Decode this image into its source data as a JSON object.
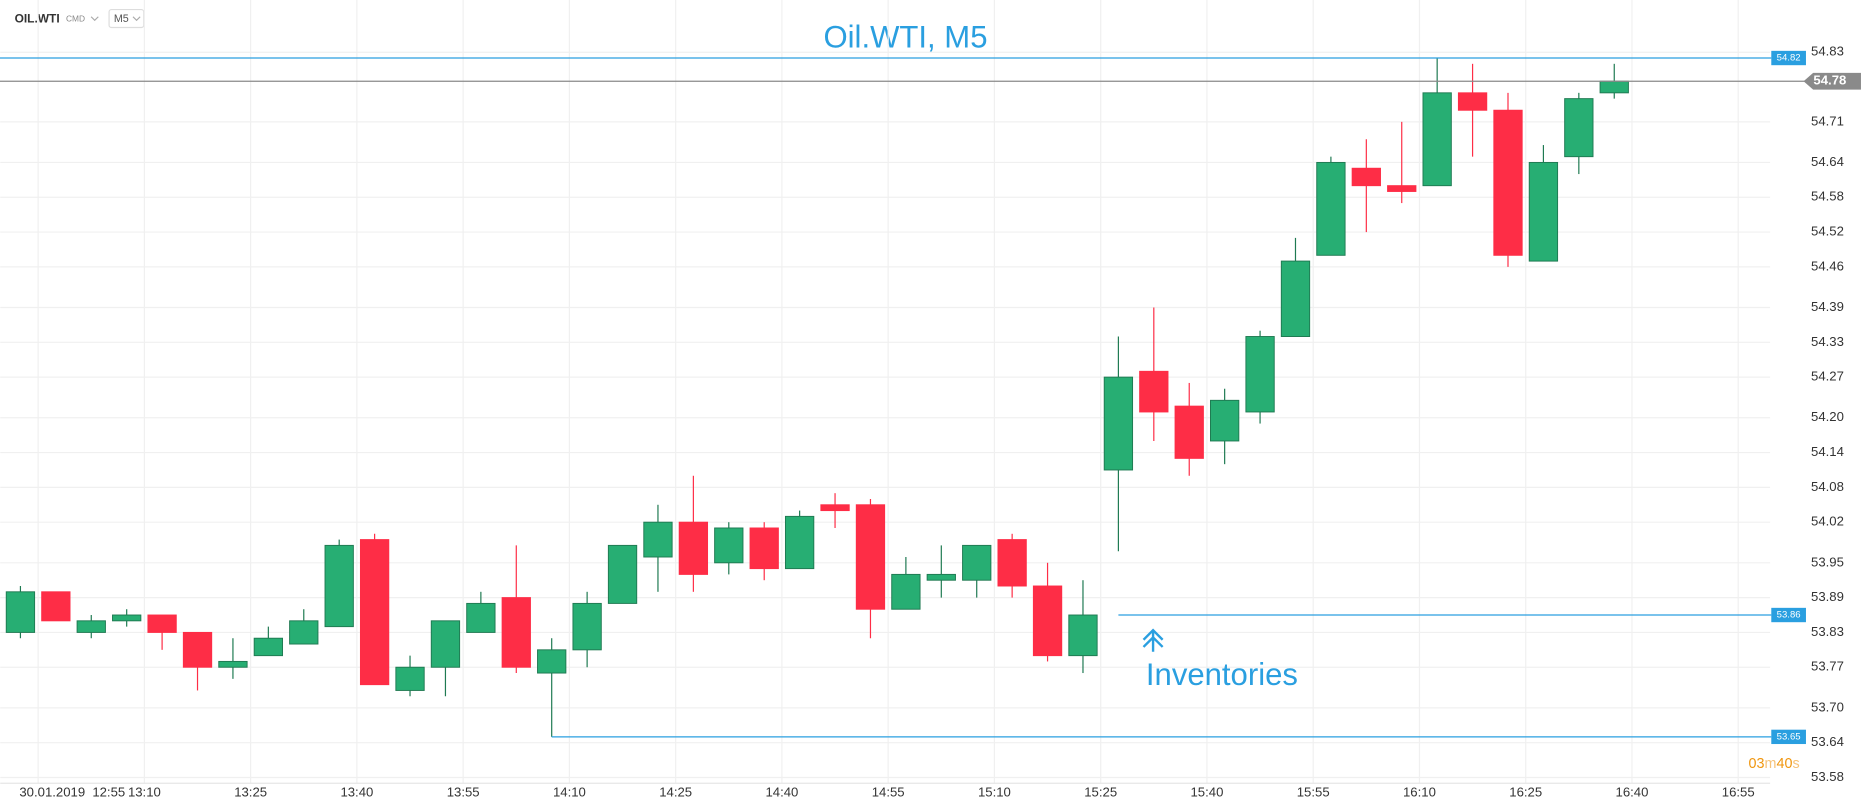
{
  "toolbar": {
    "symbol": "OIL.WTI",
    "group": "CMD",
    "interval": "M5"
  },
  "chart_data": {
    "type": "candlestick",
    "title": "Oil.WTI, M5",
    "date_label": "30.01.2019",
    "up_color": "#27ae73",
    "down_color": "#fe2d46",
    "open": [
      53.83,
      53.9,
      53.83,
      53.85,
      53.86,
      53.83,
      53.77,
      53.79,
      53.81,
      53.84,
      53.99,
      53.73,
      53.77,
      53.83,
      53.89,
      53.76,
      53.8,
      53.88,
      53.96,
      54.02,
      53.95,
      54.01,
      53.94,
      54.05,
      54.05,
      53.87,
      53.92,
      53.92,
      53.99,
      53.91,
      53.79,
      54.11,
      54.28,
      54.22,
      54.16,
      54.21,
      54.34,
      54.48,
      54.63,
      54.6,
      54.6,
      54.76,
      54.73,
      54.47,
      54.65,
      54.76
    ],
    "high": [
      53.91,
      53.9,
      53.86,
      53.87,
      53.86,
      53.83,
      53.82,
      53.84,
      53.87,
      53.99,
      54.0,
      53.79,
      53.85,
      53.9,
      53.98,
      53.82,
      53.9,
      53.98,
      54.05,
      54.1,
      54.02,
      54.02,
      54.04,
      54.07,
      54.06,
      53.96,
      53.98,
      53.98,
      54.0,
      53.95,
      53.92,
      54.34,
      54.39,
      54.26,
      54.25,
      54.35,
      54.51,
      54.65,
      54.68,
      54.71,
      54.82,
      54.81,
      54.76,
      54.67,
      54.76,
      54.81
    ],
    "low": [
      53.82,
      53.85,
      53.82,
      53.84,
      53.8,
      53.73,
      53.75,
      53.79,
      53.81,
      53.84,
      53.74,
      53.72,
      53.72,
      53.83,
      53.76,
      53.65,
      53.77,
      53.88,
      53.9,
      53.9,
      53.93,
      53.92,
      53.94,
      54.01,
      53.82,
      53.87,
      53.89,
      53.89,
      53.89,
      53.78,
      53.76,
      53.97,
      54.16,
      54.1,
      54.12,
      54.19,
      54.34,
      54.48,
      54.52,
      54.57,
      54.6,
      54.65,
      54.46,
      54.47,
      54.62,
      54.75
    ],
    "close": [
      53.9,
      53.85,
      53.85,
      53.86,
      53.83,
      53.77,
      53.78,
      53.82,
      53.85,
      53.98,
      53.74,
      53.77,
      53.85,
      53.88,
      53.77,
      53.8,
      53.88,
      53.98,
      54.02,
      53.93,
      54.01,
      53.94,
      54.03,
      54.04,
      53.87,
      53.93,
      53.93,
      53.98,
      53.91,
      53.79,
      53.86,
      54.27,
      54.21,
      54.13,
      54.23,
      54.34,
      54.47,
      54.64,
      54.6,
      54.59,
      54.76,
      54.73,
      54.48,
      54.64,
      54.75,
      54.78
    ],
    "xlim": [
      -0.57,
      49.4
    ],
    "xticks": [
      {
        "value": 1,
        "label": "12:55"
      },
      {
        "value": 4,
        "label": "13:10"
      },
      {
        "value": 7,
        "label": "13:25"
      },
      {
        "value": 10,
        "label": "13:40"
      },
      {
        "value": 13,
        "label": "13:55"
      },
      {
        "value": 16,
        "label": "14:10"
      },
      {
        "value": 19,
        "label": "14:25"
      },
      {
        "value": 22,
        "label": "14:40"
      },
      {
        "value": 25,
        "label": "14:55"
      },
      {
        "value": 28,
        "label": "15:10"
      },
      {
        "value": 31,
        "label": "15:25"
      },
      {
        "value": 34,
        "label": "15:40"
      },
      {
        "value": 37,
        "label": "15:55"
      },
      {
        "value": 40,
        "label": "16:10"
      },
      {
        "value": 43,
        "label": "16:25"
      },
      {
        "value": 46,
        "label": "16:40"
      },
      {
        "value": 49,
        "label": "16:55"
      }
    ],
    "ylim": [
      53.57,
      54.92
    ],
    "yticks": [
      54.83,
      54.71,
      54.64,
      54.58,
      54.52,
      54.46,
      54.39,
      54.33,
      54.27,
      {
        "value": 54.2,
        "label": "54.20"
      },
      54.14,
      54.08,
      54.02,
      53.95,
      53.89,
      53.83,
      53.77,
      {
        "value": 53.7,
        "label": "53.70"
      },
      53.64,
      53.58
    ],
    "grid": true,
    "levels": [
      {
        "value": 54.82,
        "from": 0,
        "color": "#2a9fe0"
      },
      {
        "value": 54.78,
        "from": 0,
        "color": "#8a8a8a",
        "current": true
      },
      {
        "value": 53.86,
        "from": 31,
        "color": "#2a9fe0"
      },
      {
        "value": 53.65,
        "from": 15,
        "color": "#2a9fe0"
      }
    ],
    "annotation": {
      "text": "Inventories",
      "at": 31
    },
    "timer": [
      "03",
      "m",
      "40",
      "s"
    ]
  }
}
